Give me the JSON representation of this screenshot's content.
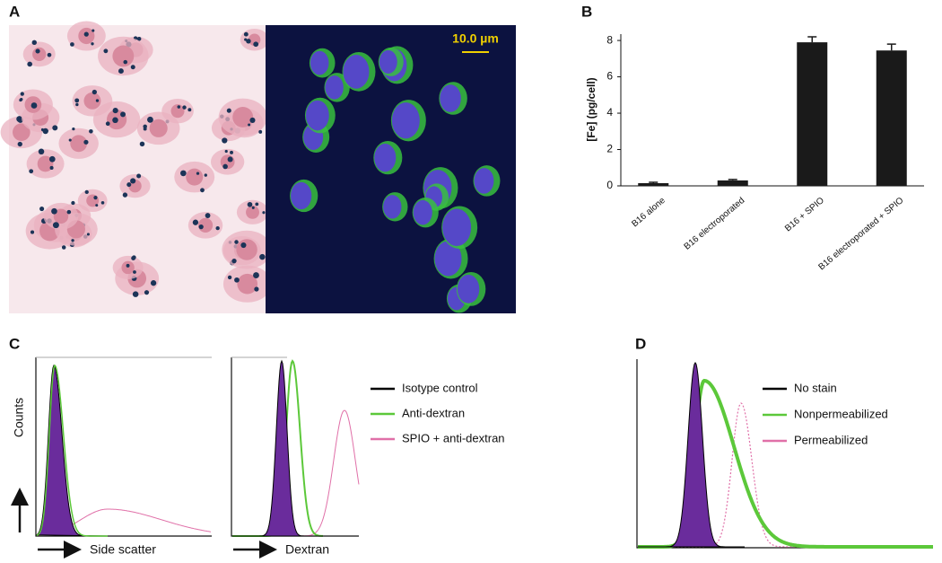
{
  "panel_labels": [
    "A",
    "B",
    "C",
    "D"
  ],
  "scale_bar": "10.0 µm",
  "chart_data": {
    "type": "bar",
    "ylabel": "[Fe]  (pg/cell)",
    "categories": [
      "B16 alone",
      "B16 electroporated",
      "B16 + SPIO",
      "B16 electroporated + SPIO"
    ],
    "values": [
      0.15,
      0.3,
      7.9,
      7.45
    ],
    "errors": [
      0.05,
      0.05,
      0.3,
      0.35
    ],
    "color": "#1a1a1a",
    "ylim": [
      0,
      8.35
    ],
    "yticks": [
      0,
      2,
      4,
      6,
      8
    ]
  },
  "panel_c": {
    "ylabel": "Counts",
    "xlabels": [
      "Side scatter",
      "Dextran"
    ],
    "legend": [
      {
        "name": "Isotype control",
        "color": "#000000"
      },
      {
        "name": "Anti-dextran",
        "color": "#5cc83a"
      },
      {
        "name": "SPIO + anti-dextran",
        "color": "#e070a8"
      }
    ]
  },
  "panel_d": {
    "legend": [
      {
        "name": "No stain",
        "color": "#000000"
      },
      {
        "name": "Nonpermeabilized",
        "color": "#5cc83a"
      },
      {
        "name": "Permeabilized",
        "color": "#e070a8"
      }
    ]
  }
}
